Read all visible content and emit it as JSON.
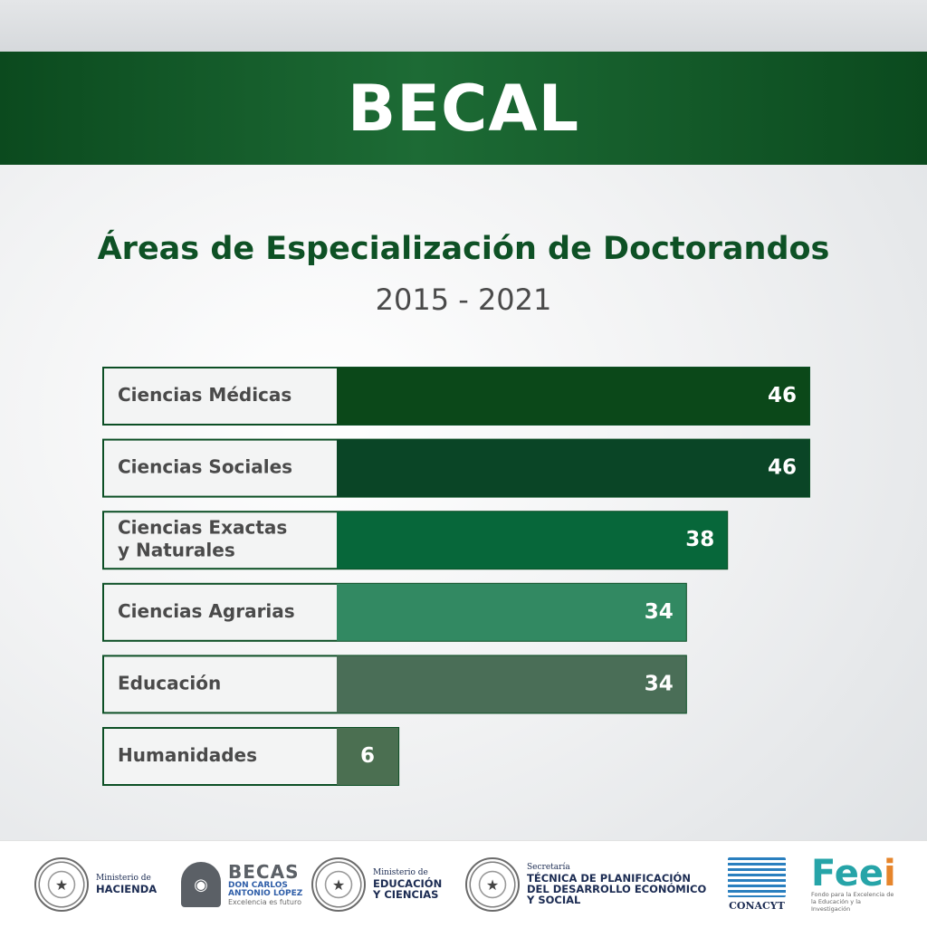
{
  "header": {
    "title": "BECAL"
  },
  "chart_data": {
    "type": "bar",
    "orientation": "horizontal",
    "title": "Áreas de Especialización de Doctorandos",
    "subtitle": "2015 - 2021",
    "categories": [
      [
        "Ciencias Médicas"
      ],
      [
        "Ciencias Sociales"
      ],
      [
        "Ciencias Exactas",
        "y Naturales"
      ],
      [
        "Ciencias Agrarias"
      ],
      [
        "Educación"
      ],
      [
        "Humanidades"
      ]
    ],
    "values": [
      46,
      46,
      38,
      34,
      34,
      6
    ],
    "colors": [
      "#0b4819",
      "#0a4526",
      "#07673a",
      "#328962",
      "#4a6e57",
      "#4b6f51"
    ],
    "label_box": {
      "fill": "#f3f4f4",
      "border": "#0c4f25",
      "text_color": "#4a4a4a"
    },
    "value_label_color": "#ffffff",
    "grid": false
  },
  "footer": {
    "logos": [
      {
        "icon": "seal-icon",
        "small": "Ministerio de",
        "big": "HACIENDA"
      },
      {
        "icon": "becas-emblem-icon",
        "big": "BECAS",
        "sub1": "DON CARLOS",
        "sub2": "ANTONIO LÓPEZ",
        "tagline": "Excelencia es futuro"
      },
      {
        "icon": "seal-icon",
        "small": "Ministerio de",
        "big1": "EDUCACIÓN",
        "big2": "Y CIENCIAS"
      },
      {
        "icon": "seal-icon",
        "small": "Secretaría",
        "big1": "TÉCNICA DE PLANIFICACIÓN",
        "big2": "DEL DESARROLLO ECONÓMICO",
        "big3": "Y SOCIAL"
      },
      {
        "icon": "conacyt-map-icon",
        "label": "CONACYT"
      },
      {
        "label": "Feei",
        "tag1": "Fondo para la Excelencia de",
        "tag2": "la Educación y la Investigación"
      }
    ]
  }
}
